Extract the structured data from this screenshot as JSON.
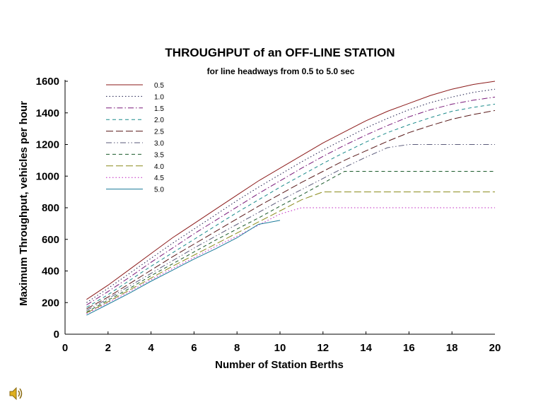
{
  "chart_data": {
    "type": "line",
    "title": "THROUGHPUT of an OFF-LINE STATION",
    "subtitle": "for line headways from 0.5 to 5.0 sec",
    "xlabel": "Number of Station Berths",
    "ylabel": "Maximum Throughput, vehicles per hour",
    "xlim": [
      0,
      20
    ],
    "ylim": [
      0,
      1600
    ],
    "xticks": [
      "0",
      "2",
      "4",
      "6",
      "8",
      "10",
      "12",
      "14",
      "16",
      "18",
      "20"
    ],
    "yticks": [
      "0",
      "200",
      "400",
      "600",
      "800",
      "1000",
      "1200",
      "1400",
      "1600"
    ],
    "grid": false,
    "legend_position": "top-left",
    "series": [
      {
        "name": "0.5",
        "color": "#8b1a1a",
        "dash": "solid",
        "x": [
          1,
          2,
          3,
          4,
          5,
          6,
          7,
          8,
          9,
          10,
          11,
          12,
          13,
          14,
          15,
          16,
          17,
          18,
          19,
          20
        ],
        "y": [
          220,
          310,
          410,
          510,
          610,
          700,
          790,
          880,
          970,
          1050,
          1130,
          1210,
          1280,
          1350,
          1410,
          1460,
          1510,
          1550,
          1580,
          1600
        ]
      },
      {
        "name": "1.0",
        "color": "#1a1a4a",
        "dash": "dot",
        "x": [
          1,
          2,
          3,
          4,
          5,
          6,
          7,
          8,
          9,
          10,
          11,
          12,
          13,
          14,
          15,
          16,
          17,
          18,
          19,
          20
        ],
        "y": [
          200,
          290,
          385,
          480,
          575,
          665,
          755,
          845,
          930,
          1010,
          1090,
          1165,
          1235,
          1305,
          1365,
          1420,
          1465,
          1500,
          1530,
          1550
        ]
      },
      {
        "name": "1.5",
        "color": "#7a1a7a",
        "dash": "dashdot",
        "x": [
          1,
          2,
          3,
          4,
          5,
          6,
          7,
          8,
          9,
          10,
          11,
          12,
          13,
          14,
          15,
          16,
          17,
          18,
          19,
          20
        ],
        "y": [
          185,
          270,
          360,
          455,
          545,
          635,
          720,
          805,
          890,
          970,
          1050,
          1125,
          1195,
          1260,
          1320,
          1375,
          1420,
          1455,
          1480,
          1500
        ]
      },
      {
        "name": "2.0",
        "color": "#1a8a8a",
        "dash": "dash",
        "x": [
          1,
          2,
          3,
          4,
          5,
          6,
          7,
          8,
          9,
          10,
          11,
          12,
          13,
          14,
          15,
          16,
          17,
          18,
          19,
          20
        ],
        "y": [
          170,
          250,
          340,
          430,
          515,
          600,
          685,
          770,
          850,
          930,
          1005,
          1080,
          1150,
          1215,
          1275,
          1325,
          1370,
          1410,
          1435,
          1455
        ]
      },
      {
        "name": "2.5",
        "color": "#5a1a1a",
        "dash": "longdash",
        "x": [
          1,
          2,
          3,
          4,
          5,
          6,
          7,
          8,
          9,
          10,
          11,
          12,
          13,
          14,
          15,
          16,
          17,
          18,
          19,
          20
        ],
        "y": [
          160,
          235,
          320,
          405,
          490,
          570,
          650,
          730,
          810,
          885,
          960,
          1030,
          1100,
          1160,
          1220,
          1275,
          1320,
          1360,
          1390,
          1415
        ]
      },
      {
        "name": "3.0",
        "color": "#5a5a7a",
        "dash": "dashdotdot",
        "x": [
          1,
          2,
          3,
          4,
          5,
          6,
          7,
          8,
          9,
          10,
          11,
          12,
          13,
          14,
          15,
          16,
          17,
          18,
          19,
          20
        ],
        "y": [
          150,
          225,
          305,
          385,
          465,
          545,
          620,
          695,
          770,
          845,
          915,
          985,
          1055,
          1120,
          1180,
          1200,
          1200,
          1200,
          1200,
          1200
        ]
      },
      {
        "name": "3.5",
        "color": "#1a5a2a",
        "dash": "dash",
        "x": [
          1,
          2,
          3,
          4,
          5,
          6,
          7,
          8,
          9,
          10,
          11,
          12,
          13,
          14,
          15,
          16,
          17,
          18,
          19,
          20
        ],
        "y": [
          140,
          215,
          290,
          370,
          445,
          520,
          595,
          665,
          735,
          810,
          880,
          955,
          1030,
          1030,
          1030,
          1030,
          1030,
          1030,
          1030,
          1030
        ]
      },
      {
        "name": "4.0",
        "color": "#8a8a1a",
        "dash": "longdash",
        "x": [
          1,
          2,
          3,
          4,
          5,
          6,
          7,
          8,
          9,
          10,
          11,
          12,
          13,
          14,
          15,
          16,
          17,
          18,
          19,
          20
        ],
        "y": [
          135,
          205,
          280,
          355,
          430,
          500,
          570,
          640,
          710,
          780,
          850,
          900,
          900,
          900,
          900,
          900,
          900,
          900,
          900,
          900
        ]
      },
      {
        "name": "4.5",
        "color": "#c020c0",
        "dash": "dot",
        "x": [
          1,
          2,
          3,
          4,
          5,
          6,
          7,
          8,
          9,
          10,
          11,
          12,
          13,
          14,
          15,
          16,
          17,
          18,
          19,
          20
        ],
        "y": [
          130,
          200,
          270,
          345,
          415,
          485,
          555,
          620,
          690,
          760,
          800,
          800,
          800,
          800,
          800,
          800,
          800,
          800,
          800,
          800
        ]
      },
      {
        "name": "5.0",
        "color": "#1a7a9a",
        "dash": "solid",
        "x": [
          1,
          2,
          3,
          4,
          5,
          6,
          7,
          8,
          9,
          10
        ],
        "y": [
          120,
          190,
          260,
          335,
          405,
          475,
          540,
          610,
          695,
          720
        ]
      }
    ]
  },
  "icons": {
    "speaker": "speaker-icon"
  }
}
